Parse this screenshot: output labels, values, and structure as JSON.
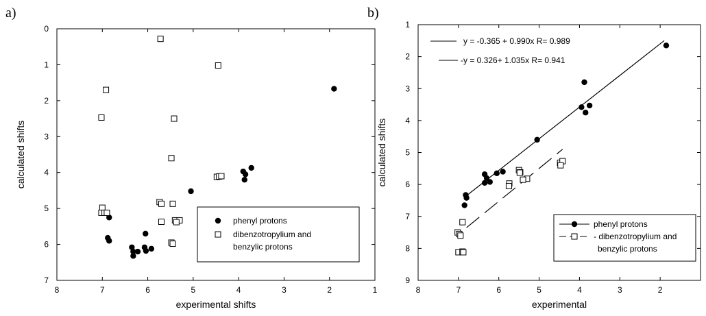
{
  "chart_data": [
    {
      "type": "scatter",
      "panel_label": "a)",
      "xlabel": "experimental shifts",
      "ylabel": "calculated shifts",
      "xlim": [
        8,
        1
      ],
      "ylim": [
        7,
        0
      ],
      "xticks": [
        "8",
        "7",
        "6",
        "5",
        "4",
        "3",
        "2",
        "1"
      ],
      "yticks": [
        "0",
        "1",
        "2",
        "3",
        "4",
        "5",
        "6",
        "7"
      ],
      "grid": false,
      "legend_position": "bottom-right",
      "series": [
        {
          "name": "phenyl protons",
          "marker": "filled-circle",
          "points": [
            [
              1.9,
              1.67
            ],
            [
              3.72,
              3.87
            ],
            [
              3.9,
              3.97
            ],
            [
              3.85,
              4.05
            ],
            [
              3.87,
              4.2
            ],
            [
              5.05,
              4.52
            ],
            [
              6.85,
              5.25
            ],
            [
              6.88,
              5.82
            ],
            [
              6.85,
              5.9
            ],
            [
              6.05,
              5.7
            ],
            [
              6.35,
              6.08
            ],
            [
              6.32,
              6.2
            ],
            [
              6.22,
              6.2
            ],
            [
              6.07,
              6.08
            ],
            [
              6.04,
              6.18
            ],
            [
              5.92,
              6.12
            ],
            [
              6.32,
              6.32
            ]
          ]
        },
        {
          "name": "dibenzotropylium and benzylic protons",
          "marker": "open-square",
          "points": [
            [
              5.72,
              0.28
            ],
            [
              4.45,
              1.02
            ],
            [
              6.92,
              1.7
            ],
            [
              7.02,
              2.47
            ],
            [
              5.42,
              2.5
            ],
            [
              5.48,
              3.6
            ],
            [
              4.48,
              4.12
            ],
            [
              4.43,
              4.11
            ],
            [
              4.38,
              4.1
            ],
            [
              7.0,
              4.98
            ],
            [
              7.02,
              5.12
            ],
            [
              6.95,
              5.12
            ],
            [
              6.9,
              5.12
            ],
            [
              5.74,
              4.82
            ],
            [
              5.7,
              4.87
            ],
            [
              5.45,
              4.87
            ],
            [
              5.7,
              5.37
            ],
            [
              5.4,
              5.33
            ],
            [
              5.3,
              5.33
            ],
            [
              5.37,
              5.38
            ],
            [
              5.48,
              5.95
            ],
            [
              5.45,
              5.98
            ]
          ]
        }
      ]
    },
    {
      "type": "scatter",
      "panel_label": "b)",
      "xlabel": "experimental",
      "ylabel": "calculated shifts",
      "xlim": [
        8,
        1
      ],
      "ylim": [
        9,
        1
      ],
      "xticks": [
        "8",
        "7",
        "6",
        "5",
        "4",
        "3",
        "2",
        ""
      ],
      "yticks": [
        "1",
        "2",
        "3",
        "4",
        "5",
        "6",
        "7",
        "8",
        "9"
      ],
      "grid": false,
      "legend_position": "bottom-right",
      "annotations": [
        {
          "line_style": "solid",
          "text": "y = -0.365 + 0.990x   R= 0.989"
        },
        {
          "line_style": "dashed",
          "text": "-y = 0.326+ 1.035x      R= 0.941"
        }
      ],
      "fit_lines": [
        {
          "style": "solid",
          "x": [
            6.85,
            1.9
          ],
          "y": [
            6.4,
            1.5
          ]
        },
        {
          "style": "dashed",
          "x": [
            6.8,
            4.42
          ],
          "y": [
            7.35,
            4.9
          ]
        }
      ],
      "series": [
        {
          "name": "phenyl protons",
          "marker": "filled-circle-with-line",
          "points": [
            [
              1.85,
              1.65
            ],
            [
              3.88,
              2.8
            ],
            [
              3.95,
              3.58
            ],
            [
              3.75,
              3.53
            ],
            [
              3.85,
              3.75
            ],
            [
              5.05,
              4.6
            ],
            [
              5.9,
              5.6
            ],
            [
              6.05,
              5.65
            ],
            [
              6.22,
              5.92
            ],
            [
              6.35,
              5.95
            ],
            [
              6.3,
              5.8
            ],
            [
              6.35,
              5.68
            ],
            [
              6.82,
              6.33
            ],
            [
              6.8,
              6.42
            ],
            [
              6.85,
              6.65
            ]
          ]
        },
        {
          "name": "- dibenzotropylium and benzylic protons",
          "marker": "open-square-with-line",
          "points": [
            [
              5.5,
              5.55
            ],
            [
              5.47,
              5.62
            ],
            [
              5.48,
              5.63
            ],
            [
              5.3,
              5.82
            ],
            [
              5.4,
              5.85
            ],
            [
              5.74,
              5.97
            ],
            [
              5.75,
              6.05
            ],
            [
              4.48,
              5.32
            ],
            [
              4.42,
              5.27
            ],
            [
              4.47,
              5.4
            ],
            [
              6.9,
              7.18
            ],
            [
              7.02,
              7.5
            ],
            [
              6.98,
              7.55
            ],
            [
              6.95,
              7.6
            ],
            [
              7.0,
              8.12
            ],
            [
              6.9,
              8.1
            ],
            [
              6.88,
              8.12
            ]
          ]
        }
      ]
    }
  ]
}
